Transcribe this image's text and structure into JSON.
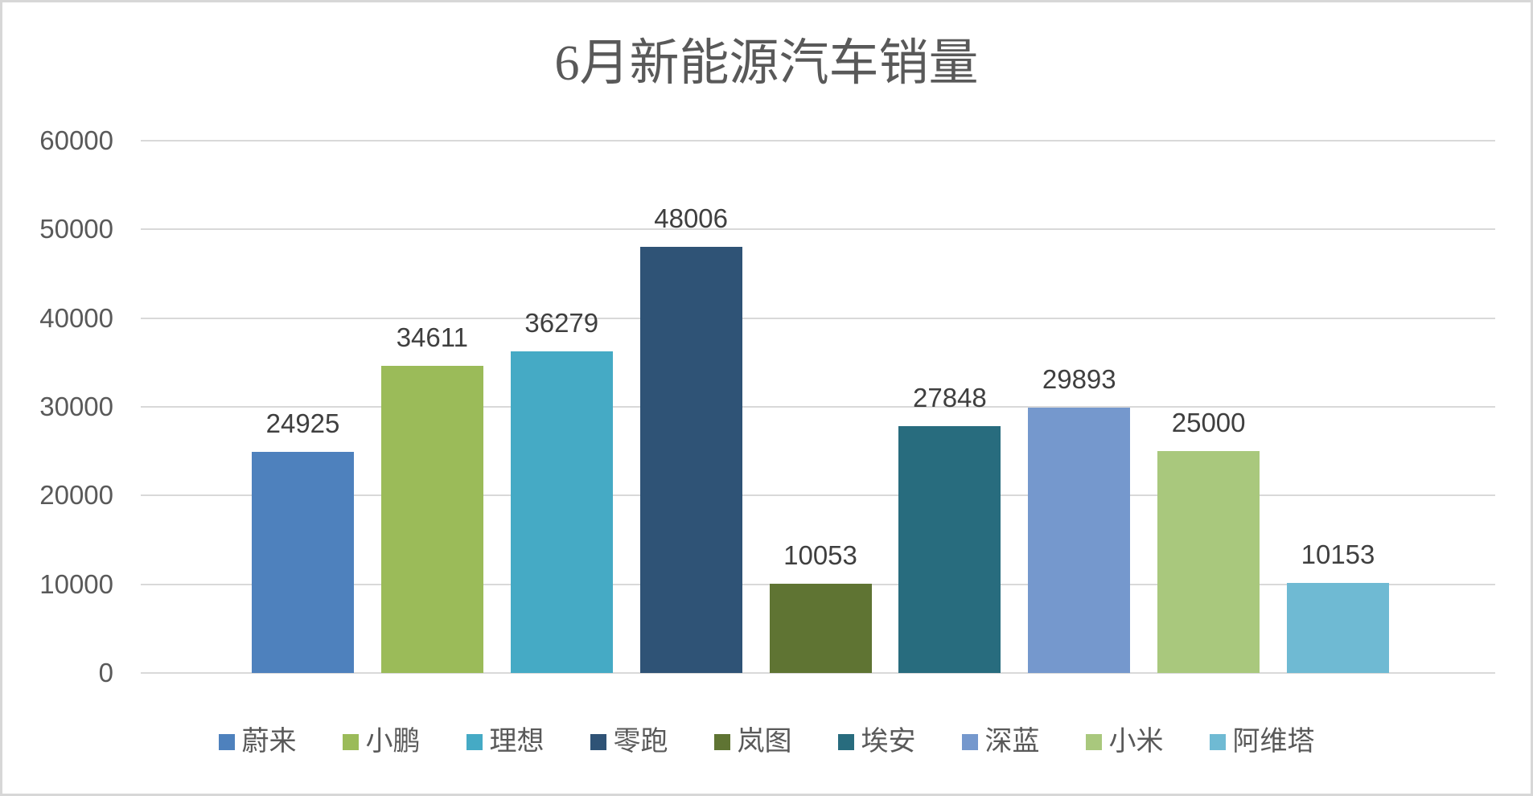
{
  "chart_data": {
    "type": "bar",
    "title": "6月新能源汽车销量",
    "categories": [
      "蔚来",
      "小鹏",
      "理想",
      "零跑",
      "岚图",
      "埃安",
      "深蓝",
      "小米",
      "阿维塔"
    ],
    "values": [
      24925,
      34611,
      36279,
      48006,
      10053,
      27848,
      29893,
      25000,
      10153
    ],
    "bar_colors": [
      "#4E81BD",
      "#9BBB59",
      "#45AAC5",
      "#2F5376",
      "#5F7433",
      "#286C7E",
      "#7598CD",
      "#A9C87D",
      "#6FBAD3"
    ],
    "xlabel": "",
    "ylabel": "",
    "ylim": [
      0,
      60000
    ],
    "yticks": [
      0,
      10000,
      20000,
      30000,
      40000,
      50000,
      60000
    ],
    "grid": true,
    "legend_position": "bottom",
    "value_labels_shown": true
  },
  "palette": {
    "title_text": "#595959",
    "axis_text": "#595959",
    "value_label_text": "#3F3F3F",
    "gridline": "#D9D9D9",
    "canvas_border": "#D7D7D7",
    "background": "#FFFFFF"
  }
}
